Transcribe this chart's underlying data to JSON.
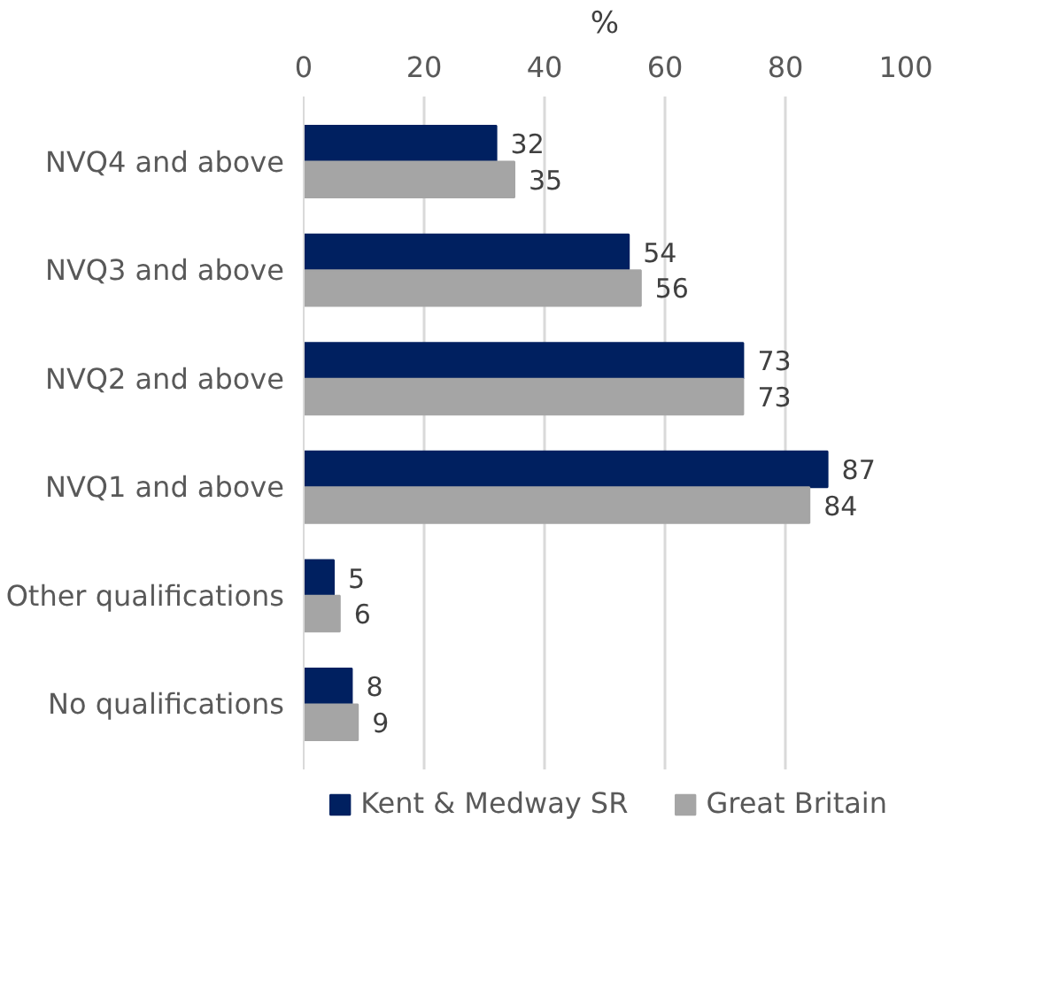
{
  "chart_data": {
    "type": "bar",
    "orientation": "horizontal",
    "xlabel": "%",
    "categories": [
      "NVQ4 and above",
      "NVQ3 and above",
      "NVQ2 and above",
      "NVQ1 and above",
      "Other qualifications",
      "No qualifications"
    ],
    "series": [
      {
        "name": "Kent & Medway SR",
        "color": "#002060",
        "values": [
          32,
          54,
          73,
          87,
          5,
          8
        ]
      },
      {
        "name": "Great Britain",
        "color": "#a5a5a5",
        "values": [
          35,
          56,
          73,
          84,
          6,
          9
        ]
      }
    ],
    "xlim": [
      0,
      100
    ],
    "xticks": [
      0,
      20,
      40,
      60,
      80,
      100
    ],
    "grid": "x",
    "legend": "bottom",
    "data_labels": true
  }
}
